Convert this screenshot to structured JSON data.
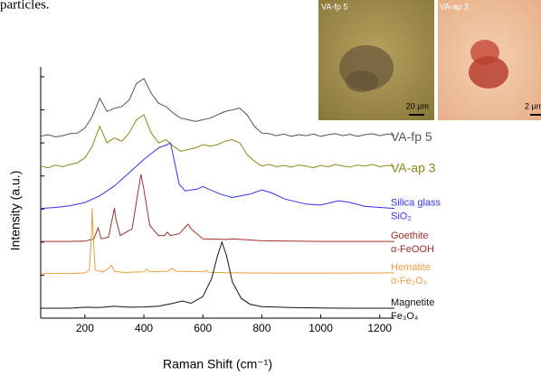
{
  "caption_fragment": "particles.",
  "chart_data": {
    "type": "line",
    "x_label": "Raman Shift (cm⁻¹)",
    "y_label": "Intensity (a.u.)",
    "xlim": [
      50,
      1250
    ],
    "xticks": [
      200,
      400,
      600,
      800,
      1000,
      1200
    ],
    "ylim": [
      -0.3,
      7.3
    ],
    "yticks": [
      0,
      1,
      2,
      3,
      4,
      5,
      6,
      7
    ],
    "series": [
      {
        "name": "VA-fp 5",
        "color": "#555555",
        "x": [
          50,
          75,
          100,
          125,
          150,
          175,
          200,
          225,
          250,
          275,
          300,
          325,
          350,
          375,
          400,
          425,
          450,
          475,
          500,
          525,
          550,
          575,
          600,
          625,
          650,
          675,
          700,
          725,
          750,
          775,
          800,
          825,
          850,
          875,
          900,
          925,
          950,
          975,
          1000,
          1025,
          1050,
          1075,
          1100,
          1125,
          1150,
          1175,
          1200,
          1225,
          1250
        ],
        "values": [
          5.2,
          5.25,
          5.18,
          5.22,
          5.28,
          5.3,
          5.45,
          5.8,
          6.35,
          5.95,
          6.05,
          6.1,
          6.3,
          6.8,
          6.95,
          6.5,
          6.2,
          6.1,
          5.9,
          5.75,
          5.7,
          5.65,
          5.7,
          5.75,
          5.85,
          5.95,
          6.0,
          6.05,
          5.85,
          5.5,
          5.3,
          5.28,
          5.22,
          5.27,
          5.2,
          5.25,
          5.22,
          5.27,
          5.2,
          5.25,
          5.28,
          5.22,
          5.26,
          5.2,
          5.25,
          5.28,
          5.22,
          5.27,
          5.24
        ]
      },
      {
        "name": "VA-ap 3",
        "color": "#8a8a1a",
        "x": [
          50,
          75,
          100,
          125,
          150,
          175,
          200,
          225,
          250,
          275,
          300,
          325,
          350,
          375,
          400,
          425,
          450,
          475,
          500,
          525,
          550,
          575,
          600,
          625,
          650,
          675,
          700,
          725,
          750,
          775,
          800,
          825,
          850,
          875,
          900,
          925,
          950,
          975,
          1000,
          1025,
          1050,
          1075,
          1100,
          1125,
          1150,
          1175,
          1200,
          1225,
          1250
        ],
        "values": [
          4.3,
          4.25,
          4.33,
          4.28,
          4.35,
          4.4,
          4.55,
          4.9,
          5.5,
          5.0,
          5.15,
          5.05,
          5.3,
          5.7,
          5.85,
          5.3,
          5.0,
          5.1,
          4.9,
          4.75,
          4.8,
          4.85,
          4.95,
          4.9,
          4.95,
          5.05,
          5.1,
          5.0,
          4.65,
          4.45,
          4.3,
          4.35,
          4.28,
          4.32,
          4.27,
          4.33,
          4.3,
          4.25,
          4.32,
          4.28,
          4.35,
          4.3,
          4.27,
          4.33,
          4.3,
          4.35,
          4.28,
          4.32,
          4.3
        ]
      },
      {
        "name": "Silica glass",
        "formula": "SiO₂",
        "color": "#3333ee",
        "x": [
          50,
          100,
          150,
          200,
          250,
          300,
          350,
          400,
          450,
          480,
          490,
          500,
          520,
          540,
          580,
          600,
          620,
          660,
          700,
          760,
          800,
          830,
          880,
          950,
          1000,
          1060,
          1100,
          1150,
          1250
        ],
        "values": [
          3.02,
          3.05,
          3.1,
          3.2,
          3.4,
          3.7,
          4.1,
          4.5,
          4.85,
          4.95,
          5.0,
          4.6,
          3.75,
          3.55,
          3.6,
          3.68,
          3.6,
          3.45,
          3.35,
          3.45,
          3.58,
          3.5,
          3.3,
          3.15,
          3.12,
          3.25,
          3.2,
          3.08,
          3.02
        ]
      },
      {
        "name": "Goethite",
        "formula": "α-FeOOH",
        "color": "#a03030",
        "x": [
          50,
          150,
          200,
          230,
          245,
          255,
          280,
          295,
          300,
          305,
          320,
          360,
          380,
          390,
          400,
          420,
          450,
          470,
          480,
          490,
          520,
          540,
          550,
          560,
          600,
          680,
          700,
          800,
          1000,
          1250
        ],
        "values": [
          2.02,
          2.02,
          2.03,
          2.1,
          2.43,
          2.1,
          2.15,
          2.8,
          3.03,
          2.7,
          2.2,
          2.4,
          3.5,
          4.05,
          3.6,
          2.5,
          2.2,
          2.2,
          2.3,
          2.2,
          2.25,
          2.45,
          2.54,
          2.4,
          2.1,
          2.08,
          2.1,
          2.04,
          2.02,
          2.02
        ]
      },
      {
        "name": "Hematite",
        "formula": "α-Fe₂O₃",
        "color": "#e8a040",
        "x": [
          50,
          150,
          200,
          215,
          222,
          225,
          228,
          235,
          260,
          280,
          290,
          300,
          330,
          400,
          410,
          420,
          480,
          495,
          510,
          600,
          610,
          620,
          700,
          900,
          1250
        ],
        "values": [
          1.05,
          1.05,
          1.07,
          1.15,
          2.2,
          3.03,
          2.2,
          1.15,
          1.1,
          1.2,
          1.3,
          1.12,
          1.08,
          1.1,
          1.18,
          1.1,
          1.12,
          1.2,
          1.12,
          1.1,
          1.14,
          1.09,
          1.07,
          1.06,
          1.07
        ]
      },
      {
        "name": "Magnetite",
        "formula": "Fe₃O₄",
        "color": "#111111",
        "x": [
          50,
          150,
          200,
          250,
          300,
          350,
          400,
          450,
          500,
          530,
          560,
          600,
          630,
          650,
          665,
          680,
          700,
          730,
          760,
          800,
          900,
          1000,
          1100,
          1250
        ],
        "values": [
          0,
          0,
          0.03,
          0.02,
          0.06,
          0.03,
          0.04,
          0.06,
          0.15,
          0.22,
          0.15,
          0.35,
          0.9,
          1.6,
          2.0,
          1.6,
          0.8,
          0.3,
          0.12,
          0.05,
          0.02,
          0.01,
          0,
          0
        ]
      }
    ]
  },
  "insets": [
    {
      "label": "VA-fp 5",
      "scale_bar": "20 µm"
    },
    {
      "label": "VA-ap 3",
      "scale_bar": "2 µm"
    }
  ]
}
